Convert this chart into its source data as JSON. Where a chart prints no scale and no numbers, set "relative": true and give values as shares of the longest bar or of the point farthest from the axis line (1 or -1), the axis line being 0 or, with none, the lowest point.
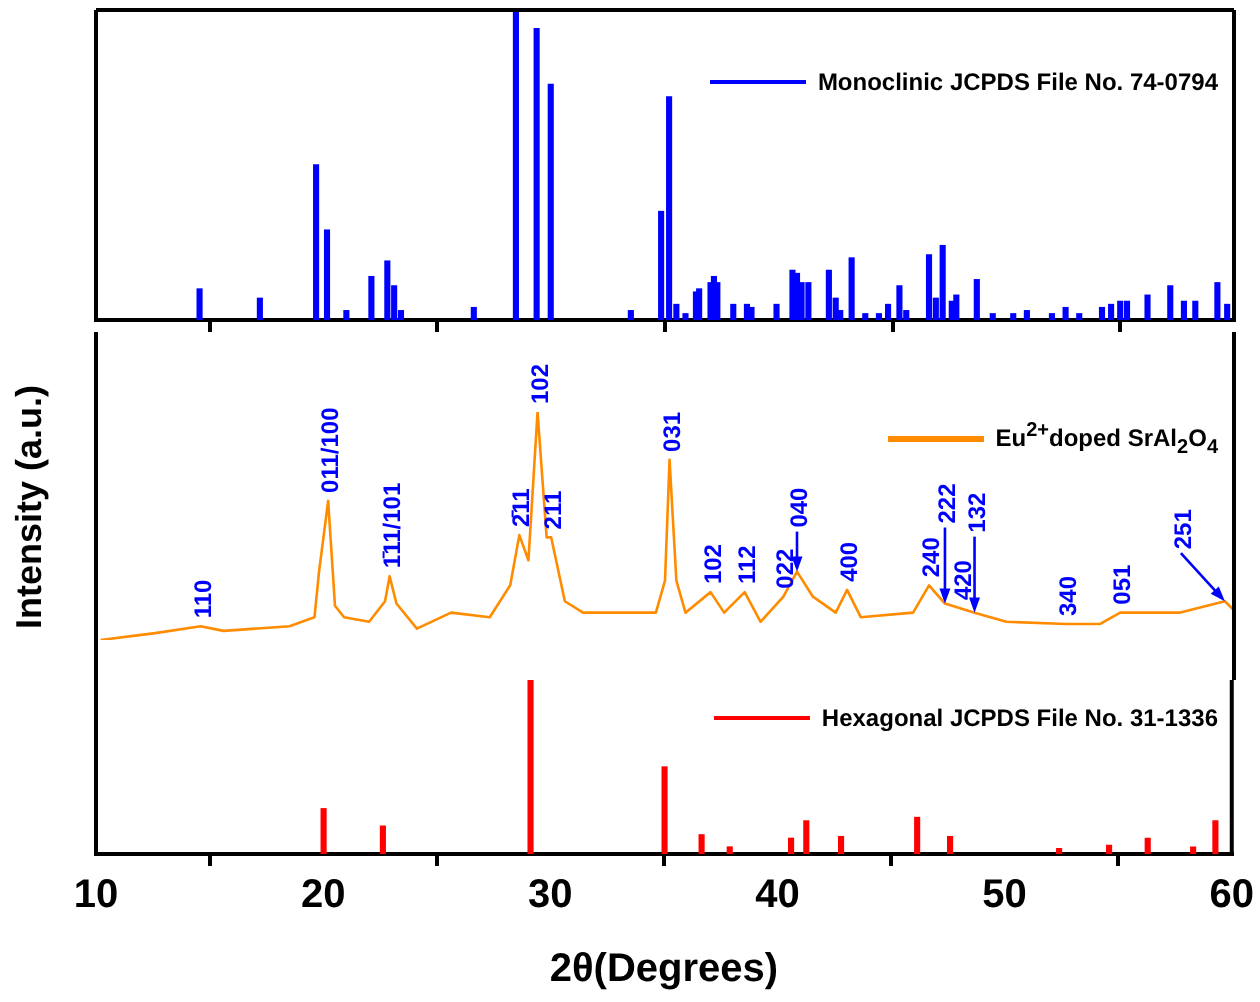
{
  "chart_data": [
    {
      "type": "bar",
      "relative": true,
      "legend": "top right",
      "xlim": [
        10,
        60
      ],
      "xticks": [
        10,
        20,
        30,
        40,
        50,
        60
      ],
      "tick_labels": false,
      "x": [
        14.55,
        17.2,
        19.67,
        20.15,
        21.0,
        22.1,
        22.8,
        23.1,
        23.4,
        26.6,
        28.45,
        29.36,
        29.98,
        33.5,
        34.83,
        35.18,
        35.5,
        35.9,
        36.36,
        36.5,
        37.0,
        37.15,
        37.3,
        38.0,
        38.6,
        38.8,
        39.9,
        40.6,
        40.8,
        41.0,
        41.3,
        42.2,
        42.5,
        42.7,
        43.2,
        43.8,
        44.4,
        44.8,
        45.3,
        45.6,
        46.6,
        46.9,
        47.2,
        47.6,
        47.8,
        48.7,
        49.4,
        50.3,
        50.9,
        52.0,
        52.6,
        53.2,
        54.2,
        54.6,
        55.0,
        55.3,
        56.2,
        57.2,
        57.8,
        58.3,
        59.27,
        59.7
      ],
      "series": [
        {
          "name": "Monoclinic JCPDS File No. 74-0794",
          "color": "#0000ff",
          "values": [
            0.1,
            0.07,
            0.5,
            0.29,
            0.03,
            0.14,
            0.19,
            0.11,
            0.03,
            0.04,
            1,
            0.94,
            0.76,
            0.03,
            0.35,
            0.72,
            0.05,
            0.02,
            0.09,
            0.1,
            0.12,
            0.14,
            0.12,
            0.05,
            0.05,
            0.04,
            0.05,
            0.16,
            0.15,
            0.12,
            0.12,
            0.16,
            0.07,
            0.03,
            0.2,
            0.02,
            0.02,
            0.05,
            0.11,
            0.03,
            0.21,
            0.07,
            0.24,
            0.06,
            0.08,
            0.13,
            0.02,
            0.02,
            0.03,
            0.02,
            0.04,
            0.02,
            0.04,
            0.05,
            0.06,
            0.06,
            0.08,
            0.11,
            0.06,
            0.06,
            0.12,
            0.05
          ]
        }
      ]
    },
    {
      "type": "line",
      "relative": true,
      "legend": "right",
      "xlim": [
        10,
        60
      ],
      "xticks": [
        10,
        20,
        30,
        40,
        50,
        60
      ],
      "tick_labels": false,
      "ylabel": "Intensity (a.u.)",
      "x": [
        10.2,
        12.6,
        14.6,
        15.6,
        18.5,
        19.6,
        19.8,
        20.2,
        20.5,
        20.9,
        22.0,
        22.7,
        22.9,
        23.2,
        24.1,
        25.6,
        27.3,
        28.2,
        28.6,
        29.0,
        29.4,
        29.8,
        30.0,
        30.6,
        31.4,
        34.6,
        35.0,
        35.2,
        35.5,
        35.9,
        37.0,
        37.6,
        38.5,
        39.2,
        40.2,
        40.8,
        41.5,
        42.5,
        43.0,
        43.6,
        45.9,
        46.6,
        47.3,
        48.6,
        50.0,
        52.6,
        54.1,
        55.0,
        57.6,
        59.6,
        60
      ],
      "series": [
        {
          "name": "Eu$^{2+}$doped SrAl$_{2}$O$_{4}$",
          "color": "#ff8c00",
          "values": [
            0,
            0.03,
            0.06,
            0.04,
            0.06,
            0.1,
            0.3,
            0.61,
            0.15,
            0.1,
            0.08,
            0.17,
            0.28,
            0.16,
            0.05,
            0.12,
            0.1,
            0.24,
            0.46,
            0.35,
            1,
            0.45,
            0.45,
            0.17,
            0.12,
            0.12,
            0.26,
            0.79,
            0.26,
            0.12,
            0.21,
            0.12,
            0.21,
            0.08,
            0.19,
            0.3,
            0.19,
            0.12,
            0.22,
            0.1,
            0.12,
            0.24,
            0.16,
            0.12,
            0.08,
            0.07,
            0.07,
            0.12,
            0.12,
            0.17,
            0.13
          ]
        }
      ],
      "annotations": [
        {
          "text": "110",
          "x": 14.6,
          "y": 0.06
        },
        {
          "text": "011/100",
          "x": 20.2,
          "y": 0.61
        },
        {
          "text": "1̄11/101",
          "x": 22.9,
          "y": 0.28
        },
        {
          "text": "2̄11",
          "x": 28.6,
          "y": 0.46
        },
        {
          "text": "102",
          "x": 29.4,
          "y": 1
        },
        {
          "text": "211",
          "x": 30.0,
          "y": 0.45
        },
        {
          "text": "031",
          "x": 35.2,
          "y": 0.79
        },
        {
          "text": "102",
          "x": 37.0,
          "y": 0.21
        },
        {
          "text": "112",
          "x": 38.5,
          "y": 0.21
        },
        {
          "text": "022",
          "x": 40.2,
          "y": 0.19
        },
        {
          "text": "040",
          "x": 40.8,
          "y": 0.3
        },
        {
          "text": "400",
          "x": 43.0,
          "y": 0.22
        },
        {
          "text": "240",
          "x": 46.6,
          "y": 0.24
        },
        {
          "text": "222",
          "x": 47.3,
          "y": 0.16
        },
        {
          "text": "420",
          "x": 48.0,
          "y": 0.14
        },
        {
          "text": "132",
          "x": 48.6,
          "y": 0.12
        },
        {
          "text": "340",
          "x": 52.6,
          "y": 0.07
        },
        {
          "text": "051",
          "x": 55.0,
          "y": 0.12
        },
        {
          "text": "251",
          "x": 59.6,
          "y": 0.17
        }
      ]
    },
    {
      "type": "bar",
      "relative": true,
      "legend": "top right",
      "xlim": [
        10,
        60
      ],
      "xticks": [
        10,
        20,
        30,
        40,
        50,
        60
      ],
      "tick_labels": "x",
      "xlabel": "2θ(Degrees)",
      "x": [
        20.02,
        22.63,
        29.13,
        35.03,
        36.66,
        37.9,
        40.6,
        41.27,
        42.8,
        46.15,
        47.6,
        52.4,
        54.6,
        56.3,
        58.3,
        59.28
      ],
      "series": [
        {
          "name": "Hexagonal JCPDS File No. 31-1336",
          "color": "#ff0000",
          "values": [
            0.26,
            0.16,
            1,
            0.5,
            0.11,
            0.04,
            0.09,
            0.19,
            0.1,
            0.21,
            0.1,
            0.03,
            0.05,
            0.09,
            0.04,
            0.19
          ]
        }
      ]
    }
  ]
}
